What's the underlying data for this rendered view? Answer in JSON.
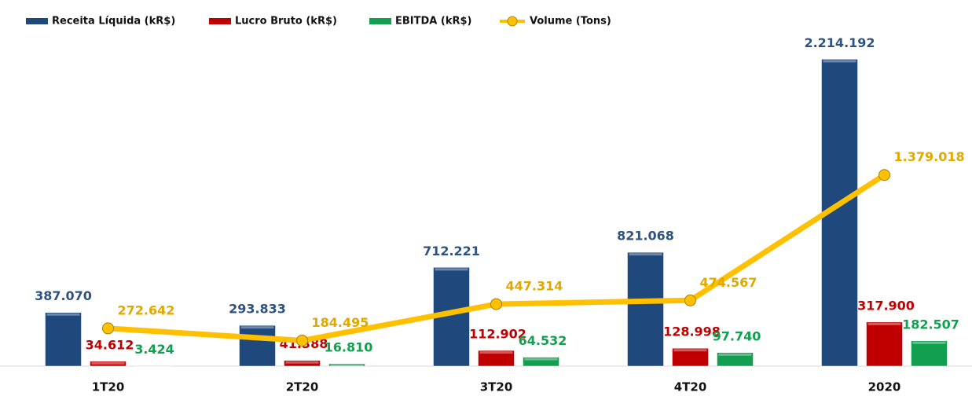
{
  "chart_data": {
    "type": "bar",
    "categories": [
      "1T20",
      "2T20",
      "3T20",
      "4T20",
      "2020"
    ],
    "series": [
      {
        "name": "Receita Líquida (kR$)",
        "color": "#1f497d",
        "label_color": "#2f527f",
        "values": [
          387070,
          293833,
          712221,
          821068,
          2214192
        ],
        "value_labels": [
          "387.070",
          "293.833",
          "712.221",
          "821.068",
          "2.214.192"
        ]
      },
      {
        "name": "Lucro Bruto (kR$)",
        "color": "#c00000",
        "label_color": "#c00000",
        "values": [
          34612,
          41388,
          112902,
          128998,
          317900
        ],
        "value_labels": [
          "34.612",
          "41.388",
          "112.902",
          "128.998",
          "317.900"
        ]
      },
      {
        "name": "EBITDA (kR$)",
        "color": "#12a050",
        "label_color": "#12a050",
        "values": [
          3424,
          16810,
          64532,
          97740,
          182507
        ],
        "value_labels": [
          "3.424",
          "16.810",
          "64.532",
          "97.740",
          "182.507"
        ]
      },
      {
        "name": "Volume (Tons)",
        "type": "line",
        "color": "#ffc000",
        "label_color": "#e0a800",
        "values": [
          272642,
          184495,
          447314,
          474567,
          1379018
        ],
        "value_labels": [
          "272.642",
          "184.495",
          "447.314",
          "474.567",
          "1.379.018"
        ]
      }
    ],
    "ylim": [
      0,
      2500000
    ]
  }
}
